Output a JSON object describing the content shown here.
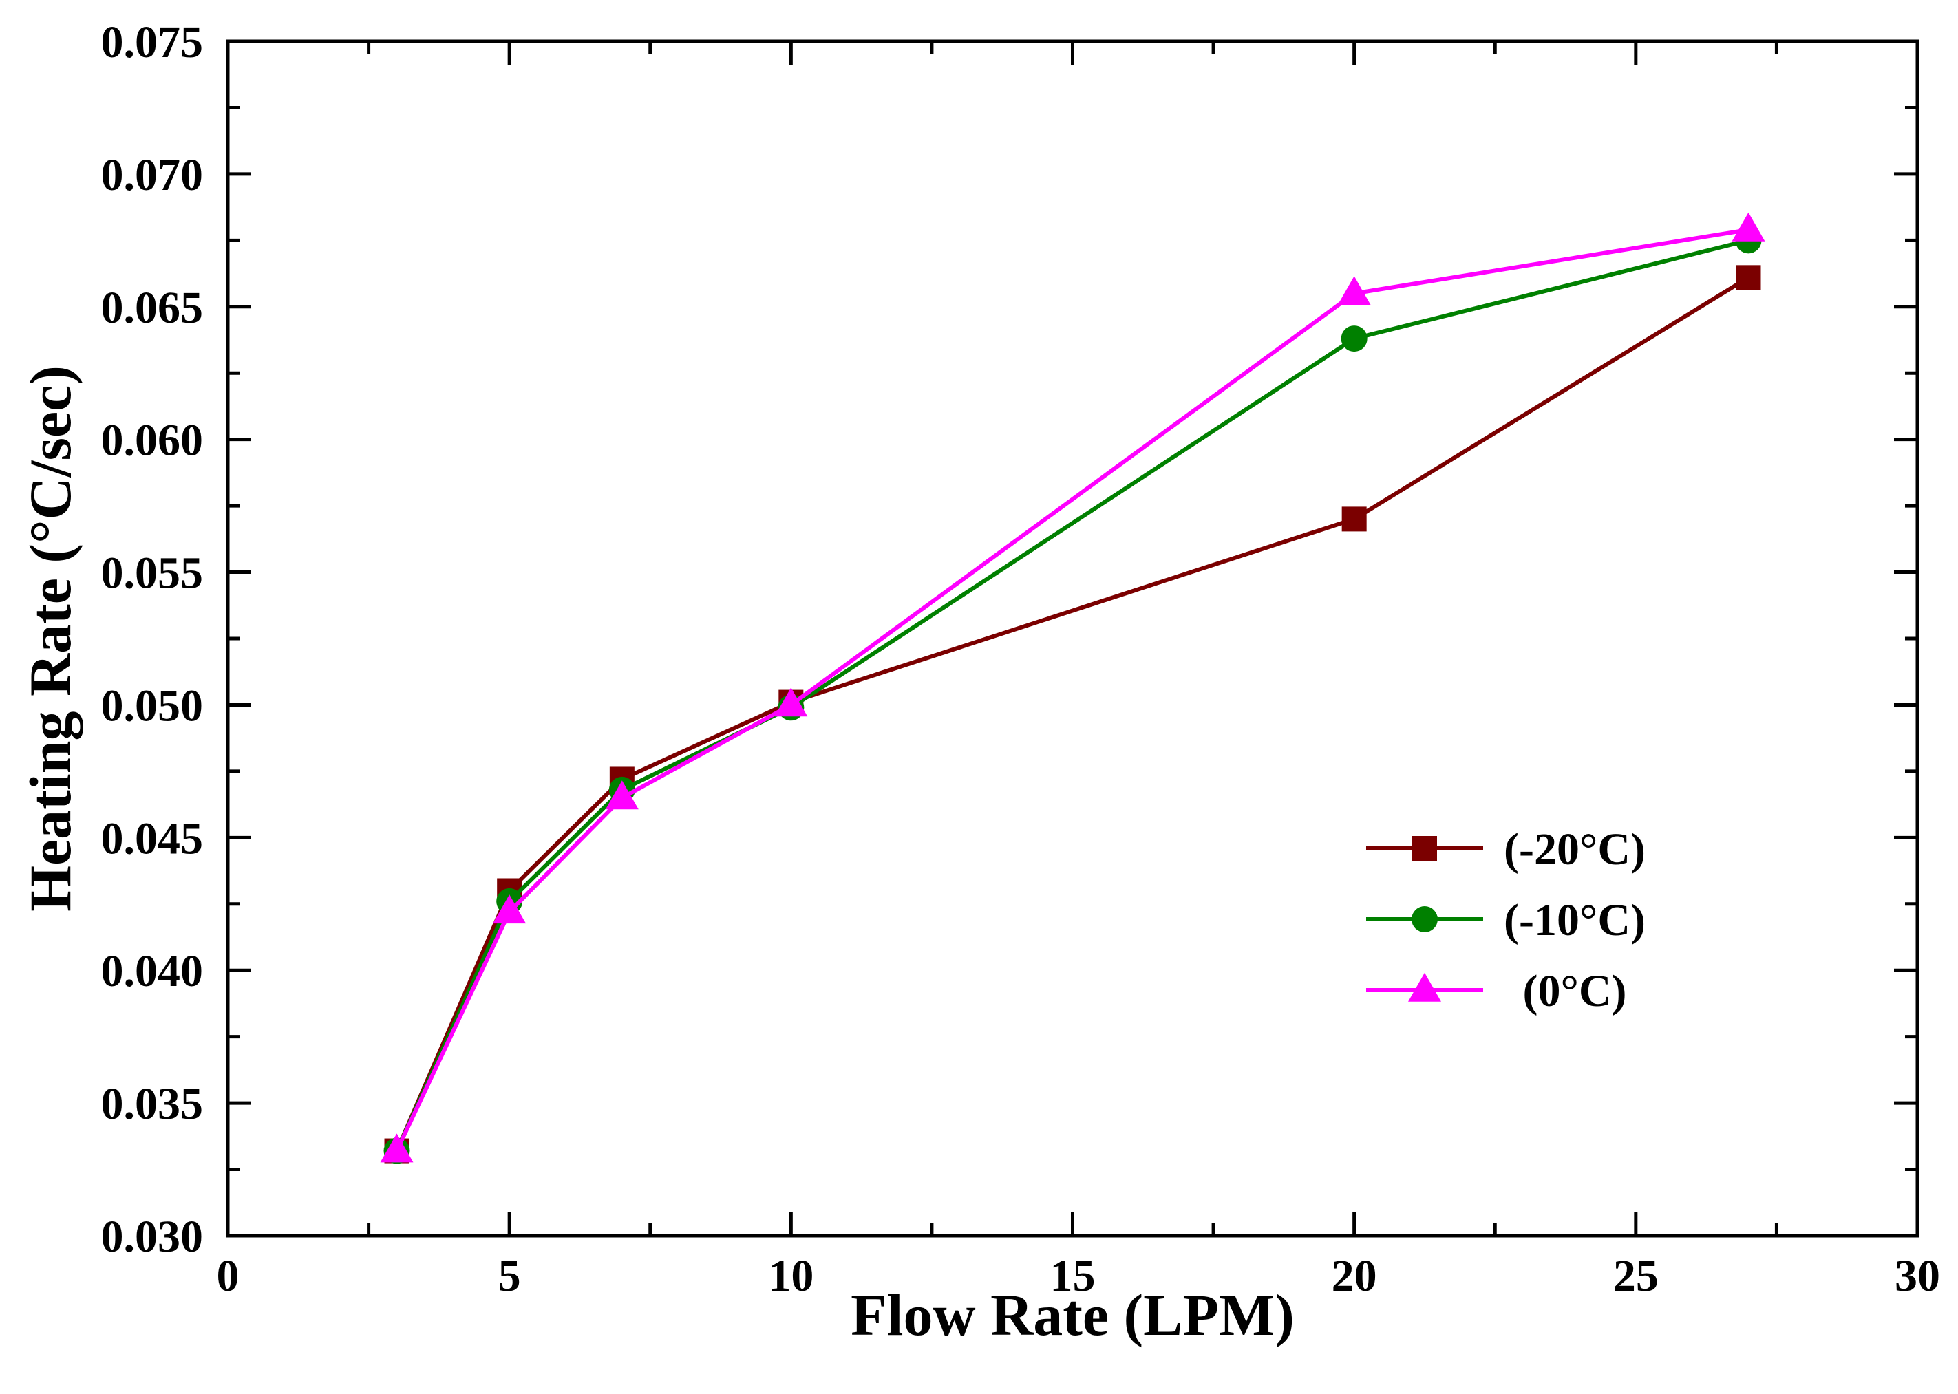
{
  "chart_data": {
    "type": "line",
    "title": "",
    "xlabel": "Flow Rate (LPM)",
    "ylabel": "Heating Rate (°C/sec)",
    "xlim": [
      0,
      30
    ],
    "ylim": [
      0.03,
      0.075
    ],
    "x_ticks": [
      0,
      5,
      10,
      15,
      20,
      25,
      30
    ],
    "x_tick_labels": [
      "0",
      "5",
      "10",
      "15",
      "20",
      "25",
      "30"
    ],
    "y_ticks": [
      0.03,
      0.035,
      0.04,
      0.045,
      0.05,
      0.055,
      0.06,
      0.065,
      0.07,
      0.075
    ],
    "y_tick_labels": [
      "0.030",
      "0.035",
      "0.040",
      "0.045",
      "0.050",
      "0.055",
      "0.060",
      "0.065",
      "0.070",
      "0.075"
    ],
    "grid": false,
    "legend_position": "center-right",
    "x": [
      3,
      5,
      7,
      10,
      20,
      27
    ],
    "series": [
      {
        "name": "(-20°C)",
        "color": "#7b0000",
        "marker": "square",
        "values": [
          0.0332,
          0.043,
          0.0472,
          0.0501,
          0.057,
          0.0661
        ]
      },
      {
        "name": "(-10°C)",
        "color": "#008000",
        "marker": "circle",
        "values": [
          0.0332,
          0.0426,
          0.0468,
          0.0499,
          0.0638,
          0.0675
        ]
      },
      {
        "name": "(0°C)",
        "color": "#ff00ff",
        "marker": "triangle",
        "values": [
          0.0332,
          0.0422,
          0.0465,
          0.05,
          0.0655,
          0.0679
        ]
      }
    ]
  }
}
